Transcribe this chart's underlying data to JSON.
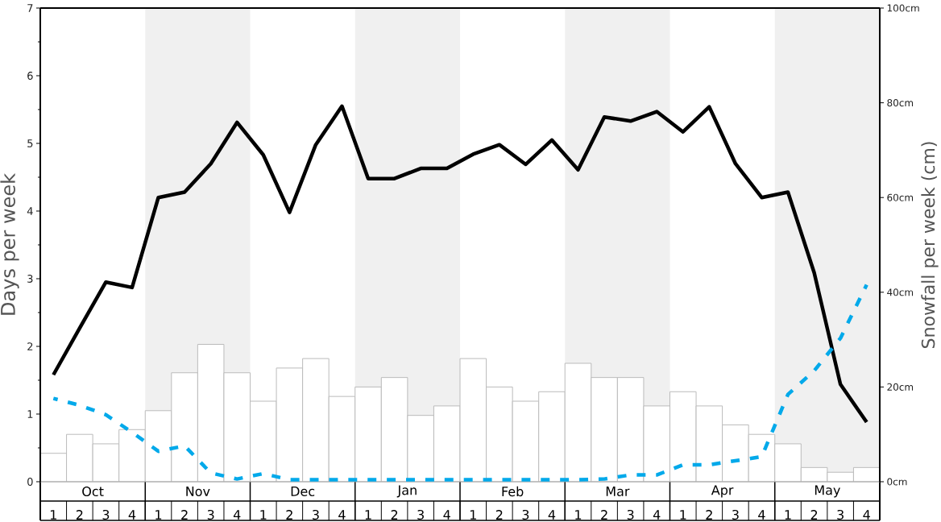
{
  "chart_data": {
    "type": "bar",
    "ylabel": "Days per week",
    "y2label": "Snowfall per week (cm)",
    "categories": [
      "1",
      "2",
      "3",
      "4",
      "1",
      "2",
      "3",
      "4",
      "1",
      "2",
      "3",
      "4",
      "1",
      "2",
      "3",
      "4",
      "1",
      "2",
      "3",
      "4",
      "1",
      "2",
      "3",
      "4",
      "1",
      "2",
      "3",
      "4",
      "1",
      "2",
      "3",
      "4"
    ],
    "annotations": [
      "Oct",
      "Nov",
      "Dec",
      "Jan",
      "Feb",
      "Mar",
      "Apr",
      "May"
    ],
    "ylim": [
      0,
      7
    ],
    "yticks": [
      0,
      {
        "value": 0.5,
        "label": null
      },
      1,
      {
        "value": 1.5,
        "label": null
      },
      2,
      {
        "value": 2.5,
        "label": null
      },
      3,
      {
        "value": 3.5,
        "label": null
      },
      4,
      {
        "value": 4.5,
        "label": null
      },
      5,
      {
        "value": 5.5,
        "label": null
      },
      6,
      {
        "value": 6.5,
        "label": null
      },
      7
    ],
    "y2lim": [
      0,
      100
    ],
    "y2ticks": [
      {
        "value": 0,
        "label": "0cm"
      },
      {
        "value": 20,
        "label": "20cm"
      },
      {
        "value": 40,
        "label": "40cm"
      },
      {
        "value": 60,
        "label": "60cm"
      },
      {
        "value": 80,
        "label": "80cm"
      },
      {
        "value": 100,
        "label": "100cm"
      }
    ],
    "series": [
      {
        "axis": "y2",
        "color": "#ffffff",
        "values": [
          6,
          10,
          8,
          11,
          15,
          23,
          29,
          23,
          17,
          24,
          26,
          18,
          20,
          22,
          14,
          16,
          26,
          20,
          17,
          19,
          25,
          22,
          22,
          16,
          19,
          16,
          12,
          10,
          8,
          3,
          2,
          3
        ]
      },
      {
        "type": "line",
        "color": "#000000",
        "line_style": "solid",
        "values": [
          1.58,
          2.27,
          2.95,
          2.87,
          4.2,
          4.28,
          4.7,
          5.31,
          4.83,
          3.98,
          4.98,
          5.55,
          4.48,
          4.48,
          4.63,
          4.63,
          4.84,
          4.98,
          4.69,
          5.05,
          4.61,
          5.39,
          5.33,
          5.47,
          5.17,
          5.54,
          4.7,
          4.2,
          4.28,
          3.09,
          1.44,
          0.88
        ]
      },
      {
        "type": "line",
        "color": "#02a9ea",
        "line_style": "dashed",
        "values": [
          1.23,
          1.13,
          0.99,
          0.73,
          0.45,
          0.53,
          0.13,
          0.04,
          0.12,
          0.03,
          0.03,
          0.03,
          0.03,
          0.03,
          0.03,
          0.03,
          0.03,
          0.03,
          0.03,
          0.03,
          0.03,
          0.04,
          0.1,
          0.1,
          0.25,
          0.25,
          0.31,
          0.37,
          1.29,
          1.64,
          2.12,
          2.91
        ]
      }
    ]
  }
}
